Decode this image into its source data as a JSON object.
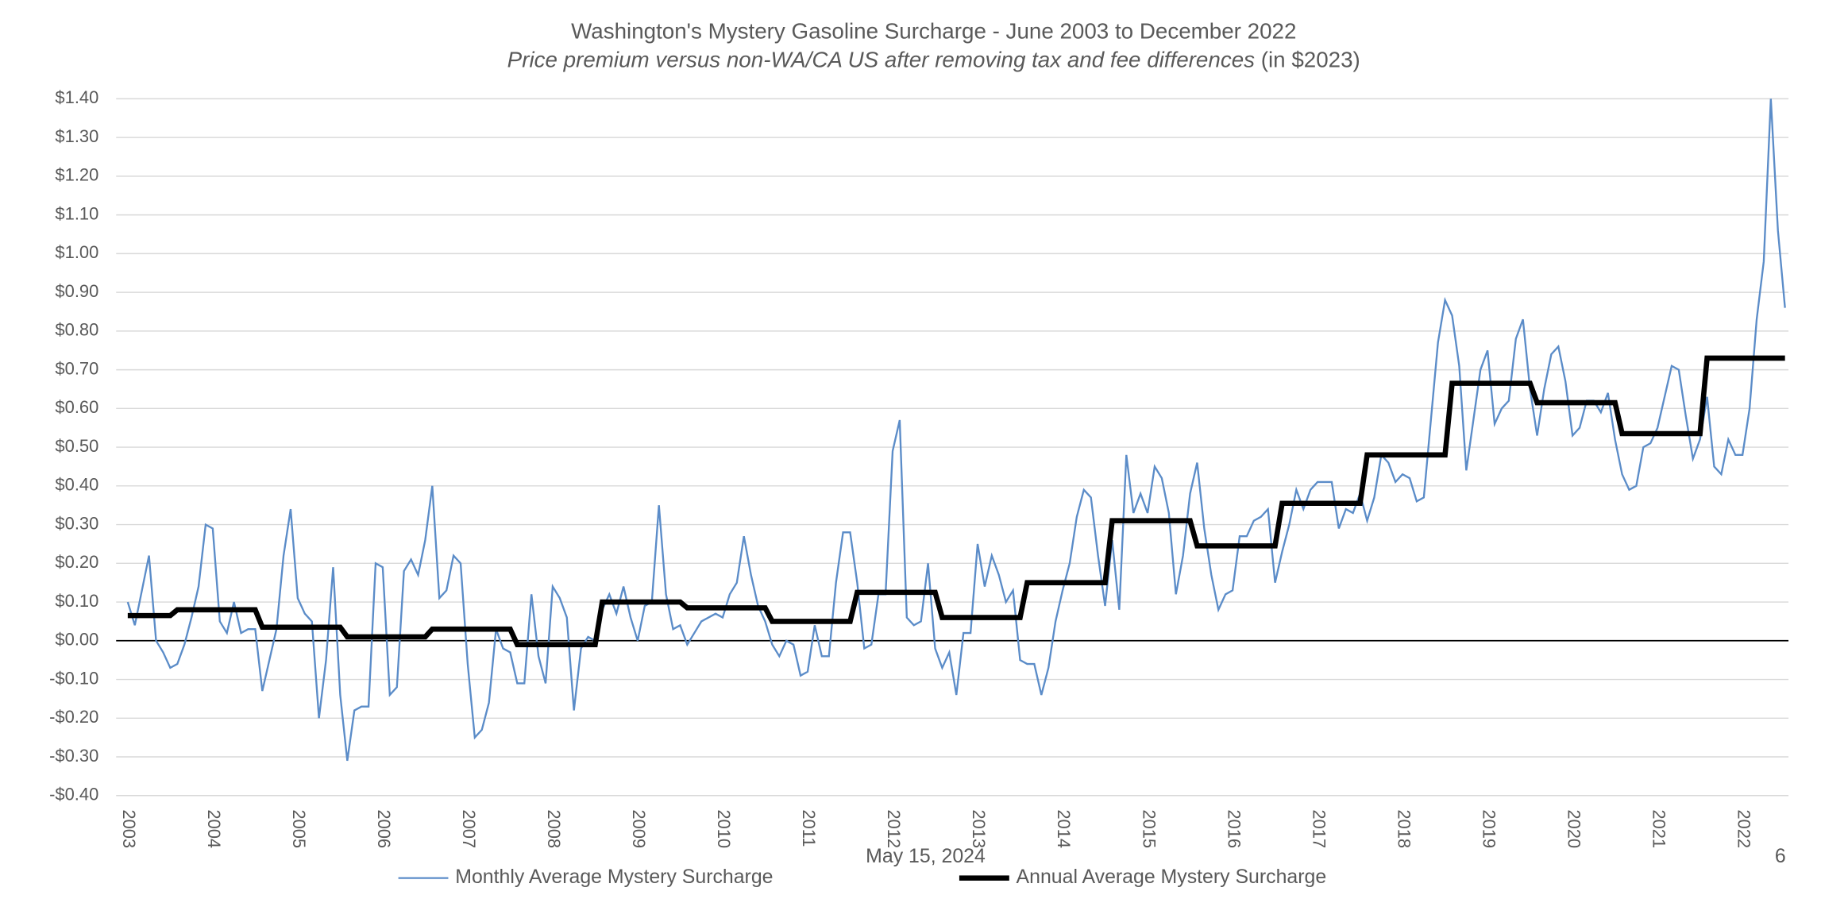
{
  "chart_data": {
    "type": "line",
    "title": "Washington's Mystery Gasoline Surcharge - June 2003 to December 2022",
    "subtitle": [
      "Price premium versus non-WA/CA US after removing tax and fee differences",
      "(in $2023)"
    ],
    "footer_date": "May 15, 2024",
    "page_number": "6",
    "categories": [
      "2003",
      null,
      null,
      null,
      null,
      null,
      null,
      null,
      null,
      null,
      null,
      null,
      "2004",
      null,
      null,
      null,
      null,
      null,
      null,
      null,
      null,
      null,
      null,
      null,
      "2005",
      null,
      null,
      null,
      null,
      null,
      null,
      null,
      null,
      null,
      null,
      null,
      "2006",
      null,
      null,
      null,
      null,
      null,
      null,
      null,
      null,
      null,
      null,
      null,
      "2007",
      null,
      null,
      null,
      null,
      null,
      null,
      null,
      null,
      null,
      null,
      null,
      "2008",
      null,
      null,
      null,
      null,
      null,
      null,
      null,
      null,
      null,
      null,
      null,
      "2009",
      null,
      null,
      null,
      null,
      null,
      null,
      null,
      null,
      null,
      null,
      null,
      "2010",
      null,
      null,
      null,
      null,
      null,
      null,
      null,
      null,
      null,
      null,
      null,
      "2011",
      null,
      null,
      null,
      null,
      null,
      null,
      null,
      null,
      null,
      null,
      null,
      "2012",
      null,
      null,
      null,
      null,
      null,
      null,
      null,
      null,
      null,
      null,
      null,
      "2013",
      null,
      null,
      null,
      null,
      null,
      null,
      null,
      null,
      null,
      null,
      null,
      "2014",
      null,
      null,
      null,
      null,
      null,
      null,
      null,
      null,
      null,
      null,
      null,
      "2015",
      null,
      null,
      null,
      null,
      null,
      null,
      null,
      null,
      null,
      null,
      null,
      "2016",
      null,
      null,
      null,
      null,
      null,
      null,
      null,
      null,
      null,
      null,
      null,
      "2017",
      null,
      null,
      null,
      null,
      null,
      null,
      null,
      null,
      null,
      null,
      null,
      "2018",
      null,
      null,
      null,
      null,
      null,
      null,
      null,
      null,
      null,
      null,
      null,
      "2019",
      null,
      null,
      null,
      null,
      null,
      null,
      null,
      null,
      null,
      null,
      null,
      "2020",
      null,
      null,
      null,
      null,
      null,
      null,
      null,
      null,
      null,
      null,
      null,
      "2021",
      null,
      null,
      null,
      null,
      null,
      null,
      null,
      null,
      null,
      null,
      null,
      "2022",
      null,
      null,
      null,
      null,
      null,
      null
    ],
    "series": [
      {
        "name": "Monthly Average Mystery Surcharge",
        "color": "#5b8cc8",
        "width": 1.6,
        "values": [
          0.1,
          0.04,
          0.13,
          0.22,
          0.0,
          -0.03,
          -0.07,
          -0.06,
          -0.01,
          0.06,
          0.14,
          0.3,
          0.29,
          0.05,
          0.02,
          0.1,
          0.02,
          0.03,
          0.03,
          -0.13,
          -0.05,
          0.03,
          0.22,
          0.34,
          0.11,
          0.07,
          0.05,
          -0.2,
          -0.05,
          0.19,
          -0.14,
          -0.31,
          -0.18,
          -0.17,
          -0.17,
          0.2,
          0.19,
          -0.14,
          -0.12,
          0.18,
          0.21,
          0.17,
          0.26,
          0.4,
          0.11,
          0.13,
          0.22,
          0.2,
          -0.06,
          -0.25,
          -0.23,
          -0.16,
          0.03,
          -0.02,
          -0.03,
          -0.11,
          -0.11,
          0.12,
          -0.04,
          -0.11,
          0.14,
          0.11,
          0.06,
          -0.18,
          -0.02,
          0.01,
          0.0,
          0.08,
          0.12,
          0.07,
          0.14,
          0.06,
          0.0,
          0.09,
          0.1,
          0.35,
          0.12,
          0.03,
          0.04,
          -0.01,
          0.02,
          0.05,
          0.06,
          0.07,
          0.06,
          0.12,
          0.15,
          0.27,
          0.17,
          0.09,
          0.05,
          -0.01,
          -0.04,
          0.0,
          -0.01,
          -0.09,
          -0.08,
          0.04,
          -0.04,
          -0.04,
          0.15,
          0.28,
          0.28,
          0.15,
          -0.02,
          -0.01,
          0.12,
          0.12,
          0.49,
          0.57,
          0.06,
          0.04,
          0.05,
          0.2,
          -0.02,
          -0.07,
          -0.03,
          -0.14,
          0.02,
          0.02,
          0.25,
          0.14,
          0.22,
          0.17,
          0.1,
          0.13,
          -0.05,
          -0.06,
          -0.06,
          -0.14,
          -0.07,
          0.05,
          0.13,
          0.2,
          0.32,
          0.39,
          0.37,
          0.22,
          0.09,
          0.26,
          0.08,
          0.48,
          0.33,
          0.38,
          0.33,
          0.45,
          0.42,
          0.33,
          0.12,
          0.22,
          0.38,
          0.46,
          0.29,
          0.17,
          0.08,
          0.12,
          0.13,
          0.27,
          0.27,
          0.31,
          0.32,
          0.34,
          0.15,
          0.23,
          0.3,
          0.39,
          0.34,
          0.39,
          0.41,
          0.41,
          0.41,
          0.29,
          0.34,
          0.33,
          0.38,
          0.31,
          0.37,
          0.48,
          0.46,
          0.41,
          0.43,
          0.42,
          0.36,
          0.37,
          0.57,
          0.77,
          0.88,
          0.84,
          0.71,
          0.44,
          0.57,
          0.7,
          0.75,
          0.56,
          0.6,
          0.62,
          0.78,
          0.83,
          0.65,
          0.53,
          0.65,
          0.74,
          0.76,
          0.67,
          0.53,
          0.55,
          0.62,
          0.62,
          0.59,
          0.64,
          0.52,
          0.43,
          0.39,
          0.4,
          0.5,
          0.51,
          0.55,
          0.63,
          0.71,
          0.7,
          0.58,
          0.47,
          0.52,
          0.63,
          0.45,
          0.43,
          0.52,
          0.48,
          0.48,
          0.6,
          0.83,
          0.98,
          1.4,
          1.06,
          0.86
        ]
      },
      {
        "name": "Annual Average Mystery Surcharge",
        "color": "#000000",
        "width": 4.5,
        "values": [
          0.065,
          0.065,
          0.065,
          0.065,
          0.065,
          0.065,
          0.065,
          0.08,
          0.08,
          0.08,
          0.08,
          0.08,
          0.08,
          0.08,
          0.08,
          0.08,
          0.08,
          0.08,
          0.08,
          0.035,
          0.035,
          0.035,
          0.035,
          0.035,
          0.035,
          0.035,
          0.035,
          0.035,
          0.035,
          0.035,
          0.035,
          0.01,
          0.01,
          0.01,
          0.01,
          0.01,
          0.01,
          0.01,
          0.01,
          0.01,
          0.01,
          0.01,
          0.01,
          0.03,
          0.03,
          0.03,
          0.03,
          0.03,
          0.03,
          0.03,
          0.03,
          0.03,
          0.03,
          0.03,
          0.03,
          -0.01,
          -0.01,
          -0.01,
          -0.01,
          -0.01,
          -0.01,
          -0.01,
          -0.01,
          -0.01,
          -0.01,
          -0.01,
          -0.01,
          0.1,
          0.1,
          0.1,
          0.1,
          0.1,
          0.1,
          0.1,
          0.1,
          0.1,
          0.1,
          0.1,
          0.1,
          0.085,
          0.085,
          0.085,
          0.085,
          0.085,
          0.085,
          0.085,
          0.085,
          0.085,
          0.085,
          0.085,
          0.085,
          0.05,
          0.05,
          0.05,
          0.05,
          0.05,
          0.05,
          0.05,
          0.05,
          0.05,
          0.05,
          0.05,
          0.05,
          0.125,
          0.125,
          0.125,
          0.125,
          0.125,
          0.125,
          0.125,
          0.125,
          0.125,
          0.125,
          0.125,
          0.125,
          0.06,
          0.06,
          0.06,
          0.06,
          0.06,
          0.06,
          0.06,
          0.06,
          0.06,
          0.06,
          0.06,
          0.06,
          0.15,
          0.15,
          0.15,
          0.15,
          0.15,
          0.15,
          0.15,
          0.15,
          0.15,
          0.15,
          0.15,
          0.15,
          0.31,
          0.31,
          0.31,
          0.31,
          0.31,
          0.31,
          0.31,
          0.31,
          0.31,
          0.31,
          0.31,
          0.31,
          0.245,
          0.245,
          0.245,
          0.245,
          0.245,
          0.245,
          0.245,
          0.245,
          0.245,
          0.245,
          0.245,
          0.245,
          0.355,
          0.355,
          0.355,
          0.355,
          0.355,
          0.355,
          0.355,
          0.355,
          0.355,
          0.355,
          0.355,
          0.355,
          0.48,
          0.48,
          0.48,
          0.48,
          0.48,
          0.48,
          0.48,
          0.48,
          0.48,
          0.48,
          0.48,
          0.48,
          0.665,
          0.665,
          0.665,
          0.665,
          0.665,
          0.665,
          0.665,
          0.665,
          0.665,
          0.665,
          0.665,
          0.665,
          0.615,
          0.615,
          0.615,
          0.615,
          0.615,
          0.615,
          0.615,
          0.615,
          0.615,
          0.615,
          0.615,
          0.615,
          0.535,
          0.535,
          0.535,
          0.535,
          0.535,
          0.535,
          0.535,
          0.535,
          0.535,
          0.535,
          0.535,
          0.535,
          0.73,
          0.73,
          0.73,
          0.73,
          0.73,
          0.73,
          0.73,
          0.73,
          0.73,
          0.73,
          0.73,
          0.73
        ]
      }
    ],
    "ylim": [
      -0.4,
      1.4
    ],
    "yticks": [
      {
        "value": -0.4,
        "label": "-$0.40"
      },
      {
        "value": -0.3,
        "label": "-$0.30"
      },
      {
        "value": -0.2,
        "label": "-$0.20"
      },
      {
        "value": -0.1,
        "label": "-$0.10"
      },
      {
        "value": 0,
        "label": "$0.00"
      },
      {
        "value": 0.1,
        "label": "$0.10"
      },
      {
        "value": 0.2,
        "label": "$0.20"
      },
      {
        "value": 0.3,
        "label": "$0.30"
      },
      {
        "value": 0.4,
        "label": "$0.40"
      },
      {
        "value": 0.5,
        "label": "$0.50"
      },
      {
        "value": 0.6,
        "label": "$0.60"
      },
      {
        "value": 0.7,
        "label": "$0.70"
      },
      {
        "value": 0.8,
        "label": "$0.80"
      },
      {
        "value": 0.9,
        "label": "$0.90"
      },
      {
        "value": 1.0,
        "label": "$1.00"
      },
      {
        "value": 1.1,
        "label": "$1.10"
      },
      {
        "value": 1.2,
        "label": "$1.20"
      },
      {
        "value": 1.3,
        "label": "$1.30"
      },
      {
        "value": 1.4,
        "label": "$1.40"
      }
    ],
    "grid": true,
    "legend": "bottom"
  }
}
